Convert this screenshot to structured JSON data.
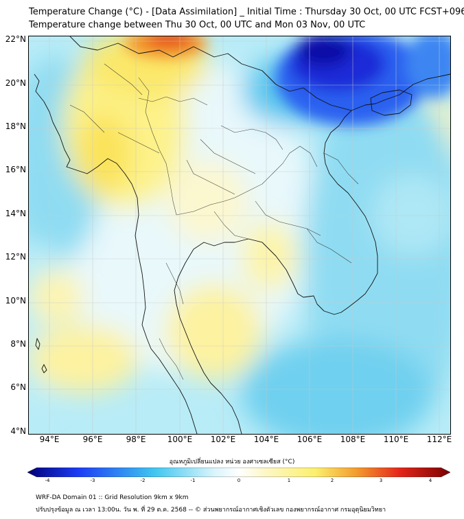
{
  "title": {
    "line1": "Temperature Change (°C) - [Data Assimilation] _ Initial Time : Thursday 30 Oct, 00 UTC FCST+096",
    "line2": "Temperature change between Thu 30 Oct, 00 UTC and Mon 03 Nov, 00 UTC"
  },
  "map": {
    "lon_range": [
      93,
      112.5
    ],
    "lat_range": [
      4,
      22.2
    ],
    "lat_ticks": [
      "22°N",
      "20°N",
      "18°N",
      "16°N",
      "14°N",
      "12°N",
      "10°N",
      "8°N",
      "6°N",
      "4°N"
    ],
    "lon_ticks": [
      "94°E",
      "96°E",
      "98°E",
      "100°E",
      "102°E",
      "104°E",
      "106°E",
      "108°E",
      "110°E",
      "112°E"
    ],
    "gridlines": true
  },
  "colorbar": {
    "title": "อุณหภูมิเปลี่ยนแปลง หน่วย องศาเซลเซียส (°C)",
    "labels": [
      "-4",
      "-3",
      "-2",
      "-1",
      "0",
      "1",
      "2",
      "3",
      "4"
    ],
    "range": [
      -4,
      4
    ],
    "colors": {
      "min": "#00007a",
      "blue": "#1b3cf5",
      "cyan": "#3fc6f0",
      "light": "#d8f4fb",
      "zero": "#ffffff",
      "yellow": "#fbf06e",
      "orange": "#f39a2c",
      "red": "#e4261a",
      "max": "#7a0000"
    }
  },
  "footer": {
    "line1": "WRF-DA Domain 01 :: Grid Resolution 9km x 9km",
    "line2": "ปรับปรุงข้อมูล ณ เวลา 13:00น. วัน พ. ที่ 29 ต.ค. 2568 -- © ส่วนพยากรณ์อากาศเชิงตัวเลข กองพยากรณ์อากาศ กรมอุตุนิยมวิทยา"
  }
}
